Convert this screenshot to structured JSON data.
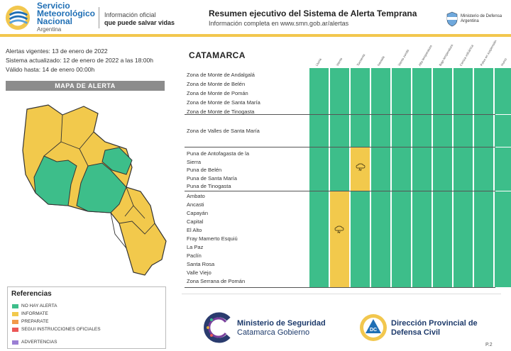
{
  "header": {
    "org_line1": "Servicio",
    "org_line2": "Meteorológico",
    "org_line3": "Nacional",
    "org_country": "Argentina",
    "tagline_1": "Información oficial",
    "tagline_2": "que puede salvar vidas",
    "title": "Resumen ejecutivo del Sistema de Alerta Temprana",
    "subtitle": "Información completa en www.smn.gob.ar/alertas",
    "ministry_line1": "Ministerio de Defensa",
    "ministry_line2": "Argentina"
  },
  "info": {
    "alertas": "Alertas vigentes: 13 de enero de 2022",
    "actualizado": "Sistema actualizado: 12 de enero de 2022 a las 18:00h",
    "valido": "Válido hasta: 14 de enero 00:00h"
  },
  "map": {
    "title": "MAPA DE ALERTA"
  },
  "legend": {
    "title": "Referencias",
    "items": [
      {
        "label": "NO HAY ALERTA",
        "color": "#3dbe8a"
      },
      {
        "label": "INFORMATE",
        "color": "#f2c94c"
      },
      {
        "label": "PREPARATE",
        "color": "#f2994a"
      },
      {
        "label": "SEGUI INSTRUCCIONES OFICIALES",
        "color": "#eb5757"
      },
      {
        "label": "ADVERTENCIAS",
        "color": "#9b7fd4"
      }
    ]
  },
  "province": "CATAMARCA",
  "columns": [
    "Lluvia",
    "Viento",
    "Tormenta",
    "Nevada",
    "Viento zonda",
    "Alta temperatura",
    "Baja temperatura",
    "Ceniza volcánica",
    "Polvo en suspensión",
    "Humo"
  ],
  "groups": [
    {
      "zones": [
        "Zona de Monte de Andalgalá",
        "Zona de Monte de Belén",
        "Zona de Monte de Pomán",
        "Zona de Monte de Santa María",
        "Zona de Monte de Tinogasta"
      ]
    },
    {
      "zones": [
        "Zona de Valles de Santa María"
      ]
    },
    {
      "zones": [
        "Puna de Antofagasta de la",
        "Sierra",
        "Puna de Belén",
        "Puna de Santa María",
        "Puna de Tinogasta"
      ]
    },
    {
      "zones": [
        "Ambato",
        "Ancasti",
        "Capayán",
        "Capital",
        "El Alto",
        "Fray Mamerto Esquiú",
        "La Paz",
        "Paclín",
        "Santa Rosa",
        "Valle Viejo",
        "Zona Serrana de Pomán"
      ]
    }
  ],
  "colors": {
    "green": "#3dbe8a",
    "yellow": "#f2c94c",
    "brand_blue": "#1f6fb5",
    "accent_yellow": "#f2c74e"
  },
  "footer": {
    "ms_line1": "Ministerio de Seguridad",
    "ms_line2": "Catamarca Gobierno",
    "dc_line1": "Dirección Provincial de",
    "dc_line2": "Defensa Civil",
    "dc_badge": "DC",
    "page": "P.2"
  }
}
